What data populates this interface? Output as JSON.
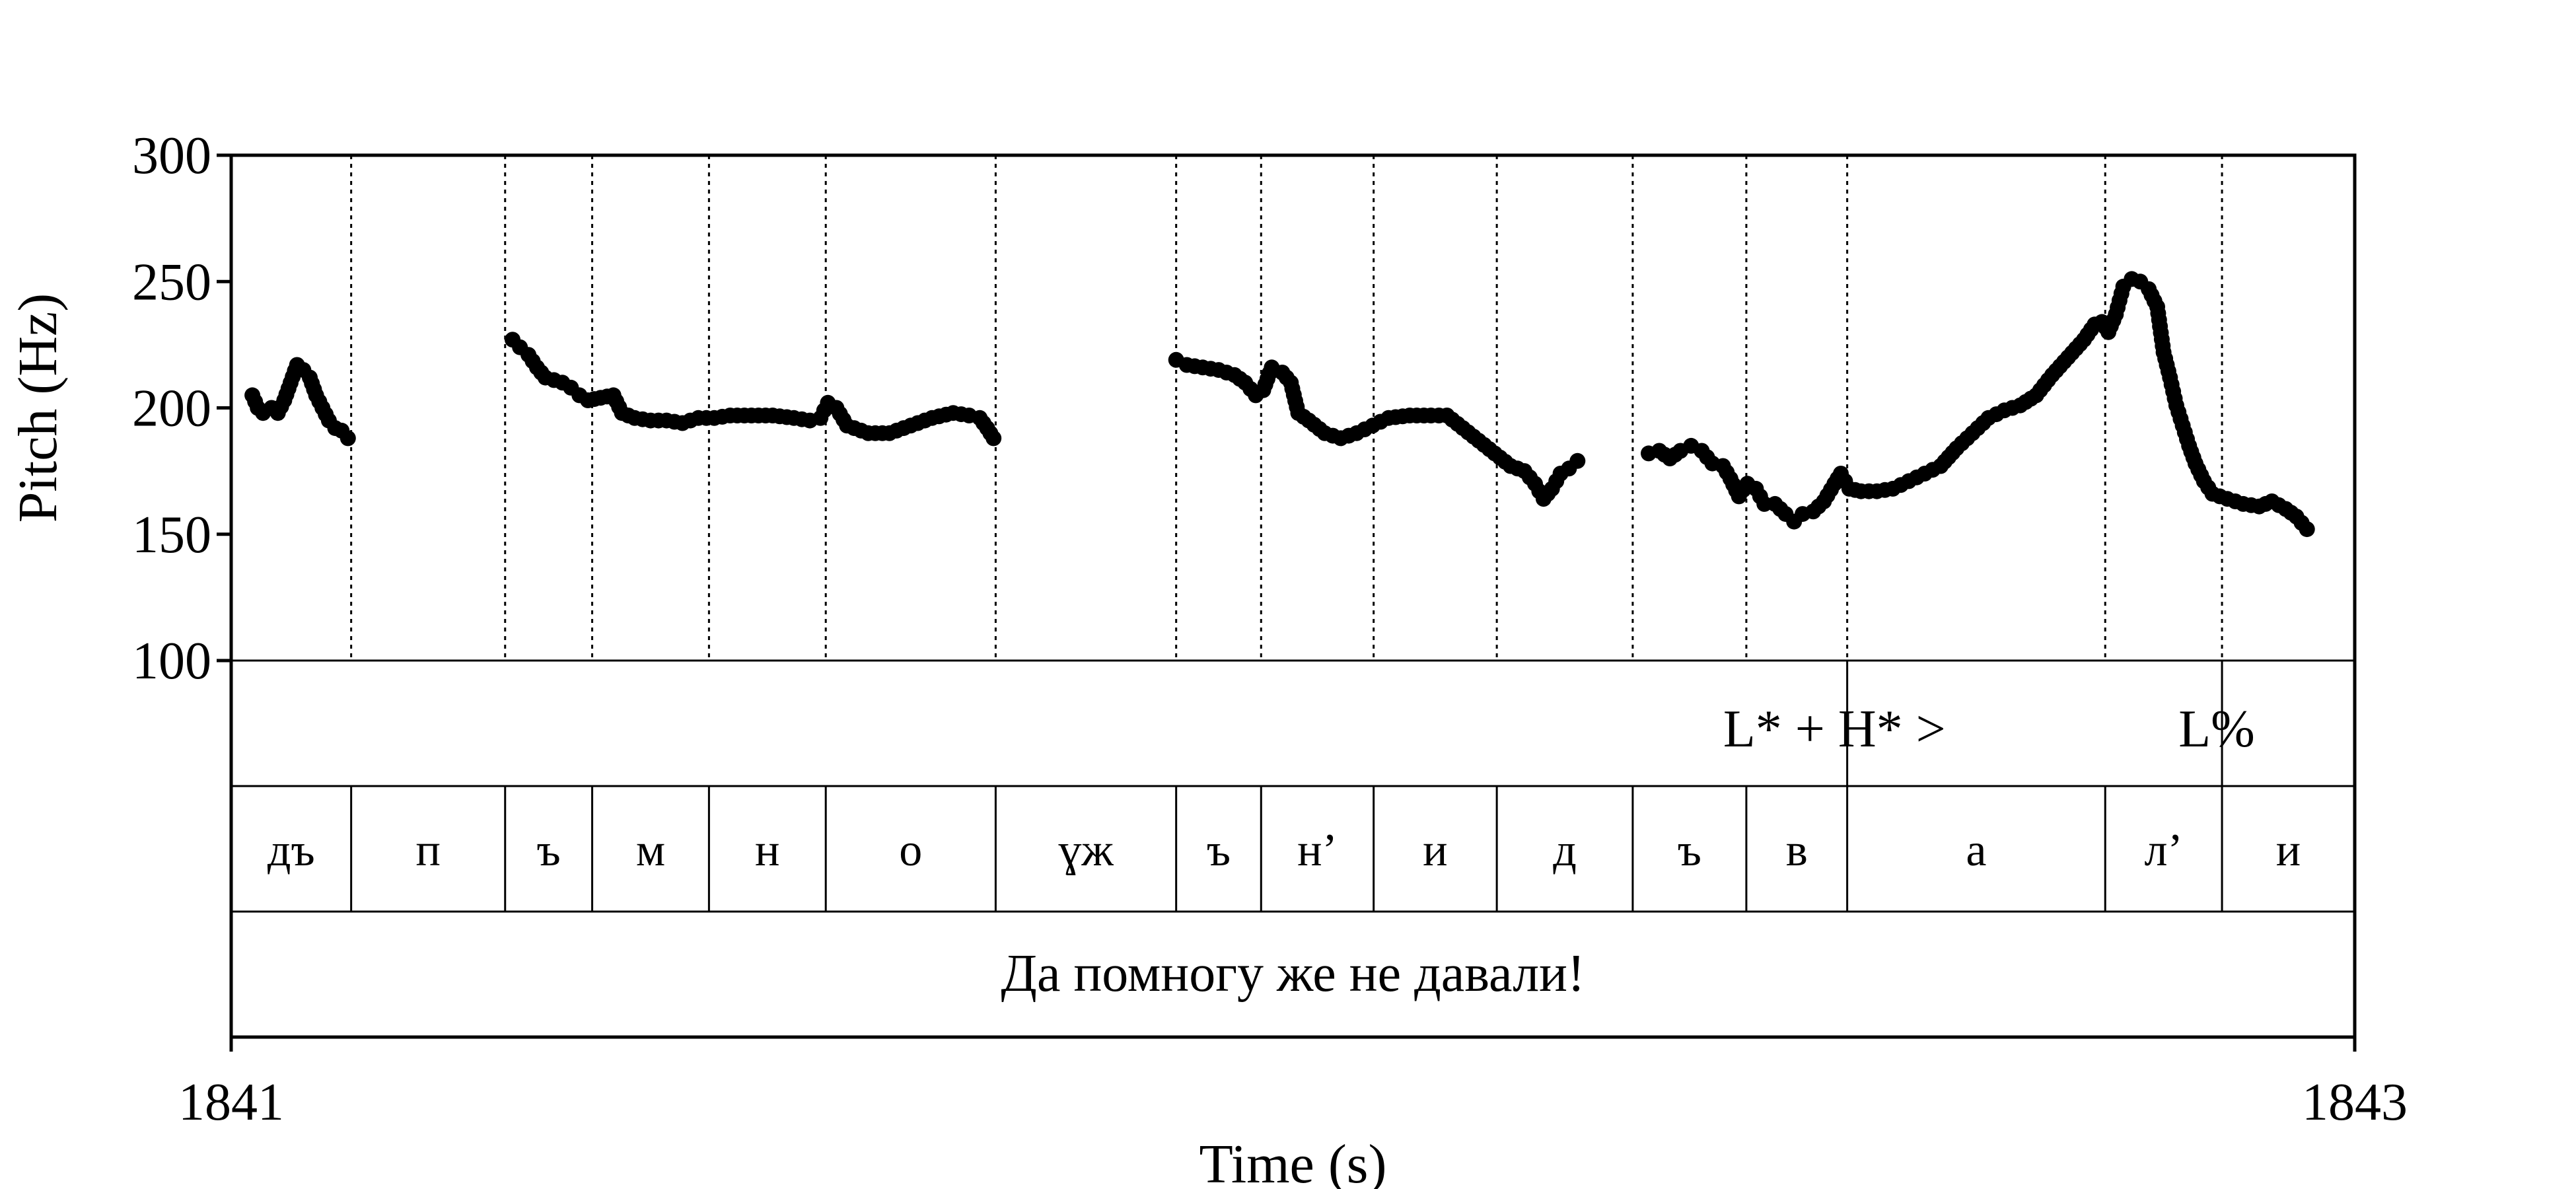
{
  "chart_data": {
    "type": "scatter",
    "title": "",
    "xlabel": "Time (s)",
    "ylabel": "Pitch (Hz)",
    "xlim": [
      1841,
      1843
    ],
    "ylim": [
      100,
      300
    ],
    "x_tick_labels": [
      "1841",
      "1843"
    ],
    "y_ticks": [
      100,
      150,
      200,
      250,
      300
    ],
    "y_tick_labels": [
      "100",
      "150",
      "200",
      "250",
      "300"
    ],
    "point_color": "#000000",
    "tiers": {
      "tones": {
        "boundaries": [
          1842.5,
          1842.25,
          1843
        ],
        "labels": [
          {
            "text": "L* + H* >",
            "t": 1842.51
          },
          {
            "text": "L%",
            "t": 1842.87
          }
        ]
      },
      "segments": {
        "boundaries": [
          1841.113,
          1841.258,
          1841.34,
          1841.45,
          1841.56,
          1841.72,
          1841.89,
          1841.97,
          1842.076,
          1842.192,
          1842.32,
          1842.427,
          1842.522,
          1842.765,
          1842.875
        ],
        "labels": [
          "дъ",
          "п",
          "ъ",
          "м",
          "н",
          "о",
          "ɣж",
          "ъ",
          "н’",
          "и",
          "д",
          "ъ",
          "в",
          "а",
          "л’",
          "и"
        ]
      },
      "sentence": "Да помногу же не давали!"
    },
    "series": [
      {
        "points": [
          [
            1841.02,
            205
          ],
          [
            1841.025,
            200
          ],
          [
            1841.03,
            198
          ],
          [
            1841.038,
            200
          ],
          [
            1841.044,
            198
          ],
          [
            1841.05,
            203
          ],
          [
            1841.056,
            210
          ],
          [
            1841.062,
            217
          ],
          [
            1841.068,
            215
          ],
          [
            1841.074,
            212
          ],
          [
            1841.08,
            205
          ],
          [
            1841.086,
            200
          ],
          [
            1841.092,
            195
          ],
          [
            1841.098,
            192
          ],
          [
            1841.104,
            191
          ],
          [
            1841.11,
            188
          ],
          [
            1841.265,
            227
          ],
          [
            1841.272,
            224
          ],
          [
            1841.28,
            221
          ],
          [
            1841.288,
            216
          ],
          [
            1841.296,
            212
          ],
          [
            1841.304,
            211
          ],
          [
            1841.312,
            210
          ],
          [
            1841.32,
            208
          ],
          [
            1841.328,
            205
          ],
          [
            1841.336,
            203
          ],
          [
            1841.36,
            205
          ],
          [
            1841.368,
            198
          ],
          [
            1841.38,
            196
          ],
          [
            1841.395,
            195
          ],
          [
            1841.41,
            195
          ],
          [
            1841.425,
            194
          ],
          [
            1841.44,
            196
          ],
          [
            1841.455,
            196
          ],
          [
            1841.47,
            197
          ],
          [
            1841.49,
            197
          ],
          [
            1841.51,
            197
          ],
          [
            1841.53,
            196
          ],
          [
            1841.545,
            195
          ],
          [
            1841.555,
            196
          ],
          [
            1841.562,
            202
          ],
          [
            1841.57,
            200
          ],
          [
            1841.58,
            193
          ],
          [
            1841.6,
            190
          ],
          [
            1841.62,
            190
          ],
          [
            1841.64,
            193
          ],
          [
            1841.66,
            196
          ],
          [
            1841.68,
            198
          ],
          [
            1841.695,
            197
          ],
          [
            1841.705,
            196
          ],
          [
            1841.712,
            192
          ],
          [
            1841.718,
            188
          ],
          [
            1841.89,
            219
          ],
          [
            1841.9,
            217
          ],
          [
            1841.915,
            216
          ],
          [
            1841.93,
            215
          ],
          [
            1841.945,
            213
          ],
          [
            1841.955,
            210
          ],
          [
            1841.965,
            205
          ],
          [
            1841.972,
            207
          ],
          [
            1841.98,
            216
          ],
          [
            1841.99,
            214
          ],
          [
            1841.998,
            210
          ],
          [
            1842.005,
            198
          ],
          [
            1842.015,
            195
          ],
          [
            1842.03,
            190
          ],
          [
            1842.045,
            188
          ],
          [
            1842.06,
            190
          ],
          [
            1842.075,
            193
          ],
          [
            1842.09,
            196
          ],
          [
            1842.11,
            197
          ],
          [
            1842.13,
            197
          ],
          [
            1842.145,
            197
          ],
          [
            1842.16,
            192
          ],
          [
            1842.175,
            187
          ],
          [
            1842.19,
            182
          ],
          [
            1842.205,
            177
          ],
          [
            1842.218,
            175
          ],
          [
            1842.228,
            170
          ],
          [
            1842.236,
            164
          ],
          [
            1842.244,
            168
          ],
          [
            1842.252,
            174
          ],
          [
            1842.26,
            176
          ],
          [
            1842.268,
            179
          ],
          [
            1842.335,
            182
          ],
          [
            1842.345,
            183
          ],
          [
            1842.355,
            180
          ],
          [
            1842.365,
            183
          ],
          [
            1842.375,
            185
          ],
          [
            1842.385,
            183
          ],
          [
            1842.395,
            178
          ],
          [
            1842.405,
            177
          ],
          [
            1842.412,
            172
          ],
          [
            1842.42,
            165
          ],
          [
            1842.428,
            170
          ],
          [
            1842.436,
            168
          ],
          [
            1842.444,
            162
          ],
          [
            1842.454,
            162
          ],
          [
            1842.464,
            158
          ],
          [
            1842.472,
            155
          ],
          [
            1842.48,
            158
          ],
          [
            1842.49,
            159
          ],
          [
            1842.5,
            163
          ],
          [
            1842.51,
            170
          ],
          [
            1842.516,
            174
          ],
          [
            1842.524,
            168
          ],
          [
            1842.535,
            167
          ],
          [
            1842.55,
            167
          ],
          [
            1842.565,
            168
          ],
          [
            1842.58,
            171
          ],
          [
            1842.595,
            174
          ],
          [
            1842.61,
            177
          ],
          [
            1842.625,
            184
          ],
          [
            1842.64,
            190
          ],
          [
            1842.655,
            196
          ],
          [
            1842.67,
            199
          ],
          [
            1842.685,
            201
          ],
          [
            1842.7,
            205
          ],
          [
            1842.715,
            213
          ],
          [
            1842.73,
            220
          ],
          [
            1842.745,
            227
          ],
          [
            1842.755,
            233
          ],
          [
            1842.762,
            234
          ],
          [
            1842.768,
            230
          ],
          [
            1842.775,
            237
          ],
          [
            1842.782,
            248
          ],
          [
            1842.79,
            251
          ],
          [
            1842.798,
            250
          ],
          [
            1842.806,
            247
          ],
          [
            1842.814,
            240
          ],
          [
            1842.82,
            222
          ],
          [
            1842.826,
            212
          ],
          [
            1842.832,
            201
          ],
          [
            1842.838,
            193
          ],
          [
            1842.844,
            185
          ],
          [
            1842.85,
            178
          ],
          [
            1842.858,
            171
          ],
          [
            1842.866,
            166
          ],
          [
            1842.88,
            164
          ],
          [
            1842.895,
            162
          ],
          [
            1842.91,
            161
          ],
          [
            1842.922,
            163
          ],
          [
            1842.935,
            160
          ],
          [
            1842.945,
            157
          ],
          [
            1842.955,
            152
          ]
        ]
      }
    ]
  }
}
